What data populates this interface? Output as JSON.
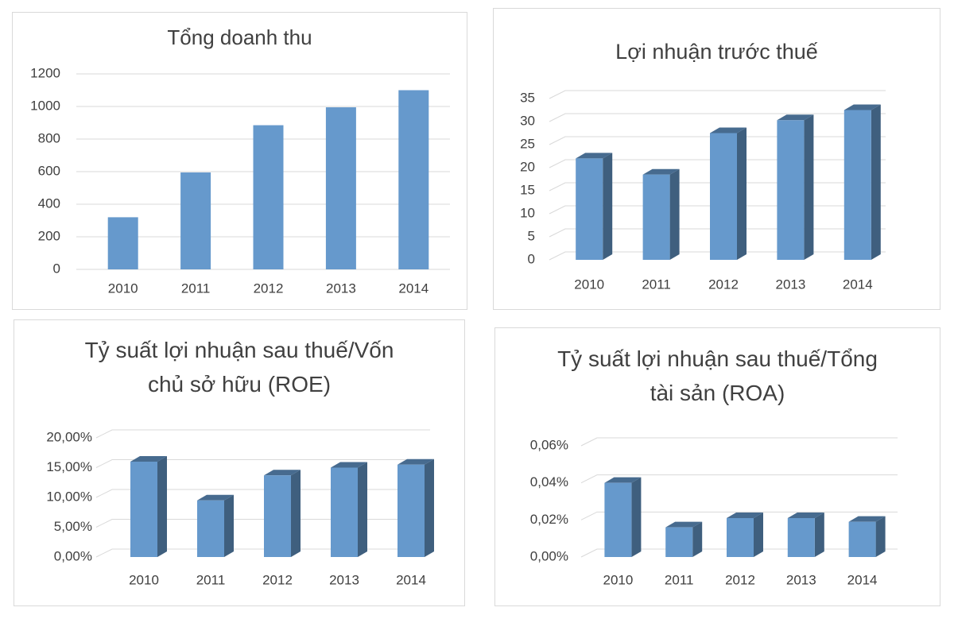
{
  "chart_data": [
    {
      "type": "bar",
      "title": "Tổng doanh thu",
      "categories": [
        "2010",
        "2011",
        "2012",
        "2013",
        "2014"
      ],
      "values": [
        320,
        595,
        885,
        995,
        1100
      ],
      "color": "#6699cc",
      "ylim": [
        0,
        1200
      ],
      "yticks": [
        0,
        200,
        400,
        600,
        800,
        1000,
        1200
      ],
      "grid": true
    },
    {
      "type": "bar3d",
      "title": "Lợi nhuận trước thuế",
      "categories": [
        "2010",
        "2011",
        "2012",
        "2013",
        "2014"
      ],
      "values": [
        22,
        18.5,
        27.5,
        30.3,
        32.5
      ],
      "color": "#6699cc",
      "ylim": [
        0,
        35
      ],
      "yticks": [
        0,
        5,
        10,
        15,
        20,
        25,
        30,
        35
      ],
      "grid": true
    },
    {
      "type": "bar3d",
      "title": "Tỷ suất lợi nhuận sau thuế/Vốn chủ sở hữu (ROE)",
      "categories": [
        "2010",
        "2011",
        "2012",
        "2013",
        "2014"
      ],
      "values": [
        16,
        9.5,
        13.7,
        15,
        15.5
      ],
      "color": "#6699cc",
      "ylim": [
        0,
        20
      ],
      "yticks": [
        {
          "value": 0,
          "label": "0,00%"
        },
        {
          "value": 5,
          "label": "5,00%"
        },
        {
          "value": 10,
          "label": "10,00%"
        },
        {
          "value": 15,
          "label": "15,00%"
        },
        {
          "value": 20,
          "label": "20,00%"
        }
      ],
      "grid": true
    },
    {
      "type": "bar3d",
      "title": "Tỷ suất lợi nhuận sau thuế/Tổng tài sản (ROA)",
      "categories": [
        "2010",
        "2011",
        "2012",
        "2013",
        "2014"
      ],
      "values": [
        0.04,
        0.016,
        0.021,
        0.021,
        0.019
      ],
      "color": "#6699cc",
      "ylim": [
        0,
        0.06
      ],
      "yticks": [
        {
          "value": 0,
          "label": "0,00%"
        },
        {
          "value": 0.02,
          "label": "0,02%"
        },
        {
          "value": 0.04,
          "label": "0,04%"
        },
        {
          "value": 0.06,
          "label": "0,06%"
        }
      ],
      "grid": true
    }
  ]
}
